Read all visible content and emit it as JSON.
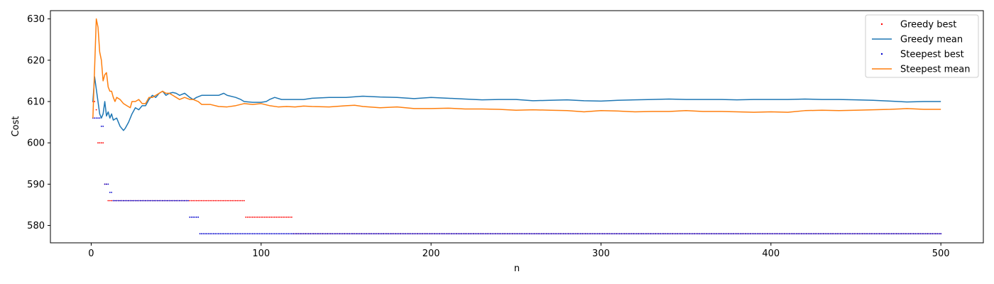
{
  "chart_data": {
    "type": "line",
    "title": "",
    "xlabel": "n",
    "ylabel": "Cost",
    "xlim": [
      -24,
      525
    ],
    "ylim": [
      575.8,
      632
    ],
    "xticks": [
      0,
      100,
      200,
      300,
      400,
      500
    ],
    "yticks": [
      580,
      590,
      600,
      610,
      620,
      630
    ],
    "grid": false,
    "legend_position": "top-right",
    "series": [
      {
        "name": "Greedy best",
        "kind": "points",
        "color": "#ff0000",
        "steps": [
          {
            "from": 1,
            "to": 2,
            "y": 610
          },
          {
            "from": 3,
            "to": 3,
            "y": 608
          },
          {
            "from": 4,
            "to": 7,
            "y": 600
          },
          {
            "from": 8,
            "to": 8,
            "y": 590
          },
          {
            "from": 9,
            "to": 9,
            "y": 590
          },
          {
            "from": 10,
            "to": 90,
            "y": 586
          },
          {
            "from": 91,
            "to": 118,
            "y": 582
          },
          {
            "from": 119,
            "to": 500,
            "y": 578
          }
        ]
      },
      {
        "name": "Greedy mean",
        "kind": "line",
        "color": "#1f77b4",
        "points": [
          [
            1,
            610
          ],
          [
            2,
            616
          ],
          [
            3,
            613
          ],
          [
            4,
            610
          ],
          [
            5,
            607
          ],
          [
            6,
            606
          ],
          [
            7,
            607
          ],
          [
            8,
            610
          ],
          [
            9,
            606.5
          ],
          [
            10,
            607.5
          ],
          [
            11,
            606
          ],
          [
            12,
            607
          ],
          [
            13,
            605.5
          ],
          [
            15,
            606
          ],
          [
            17,
            604
          ],
          [
            19,
            603
          ],
          [
            20,
            603.5
          ],
          [
            22,
            605
          ],
          [
            24,
            607
          ],
          [
            26,
            608.5
          ],
          [
            28,
            608
          ],
          [
            30,
            609
          ],
          [
            32,
            609
          ],
          [
            34,
            610.5
          ],
          [
            36,
            611.5
          ],
          [
            38,
            611
          ],
          [
            40,
            612
          ],
          [
            42,
            612.5
          ],
          [
            44,
            611.5
          ],
          [
            46,
            612
          ],
          [
            48,
            612.2
          ],
          [
            50,
            612
          ],
          [
            52,
            611.5
          ],
          [
            55,
            612
          ],
          [
            58,
            611
          ],
          [
            60,
            610.5
          ],
          [
            62,
            611
          ],
          [
            65,
            611.5
          ],
          [
            70,
            611.5
          ],
          [
            75,
            611.5
          ],
          [
            78,
            612
          ],
          [
            80,
            611.5
          ],
          [
            85,
            611
          ],
          [
            88,
            610.5
          ],
          [
            90,
            610
          ],
          [
            95,
            609.8
          ],
          [
            100,
            609.8
          ],
          [
            103,
            610
          ],
          [
            105,
            610.5
          ],
          [
            108,
            611
          ],
          [
            112,
            610.5
          ],
          [
            118,
            610.5
          ],
          [
            125,
            610.5
          ],
          [
            130,
            610.8
          ],
          [
            140,
            611
          ],
          [
            150,
            611
          ],
          [
            160,
            611.3
          ],
          [
            170,
            611.1
          ],
          [
            180,
            611
          ],
          [
            190,
            610.7
          ],
          [
            200,
            611
          ],
          [
            210,
            610.8
          ],
          [
            220,
            610.6
          ],
          [
            230,
            610.4
          ],
          [
            240,
            610.5
          ],
          [
            250,
            610.5
          ],
          [
            260,
            610.2
          ],
          [
            270,
            610.3
          ],
          [
            280,
            610.4
          ],
          [
            290,
            610.2
          ],
          [
            300,
            610.1
          ],
          [
            310,
            610.3
          ],
          [
            320,
            610.4
          ],
          [
            330,
            610.5
          ],
          [
            340,
            610.6
          ],
          [
            350,
            610.5
          ],
          [
            360,
            610.5
          ],
          [
            370,
            610.5
          ],
          [
            380,
            610.4
          ],
          [
            390,
            610.5
          ],
          [
            400,
            610.5
          ],
          [
            410,
            610.5
          ],
          [
            420,
            610.6
          ],
          [
            430,
            610.5
          ],
          [
            440,
            610.5
          ],
          [
            450,
            610.4
          ],
          [
            460,
            610.3
          ],
          [
            470,
            610.1
          ],
          [
            480,
            609.9
          ],
          [
            490,
            610
          ],
          [
            500,
            610
          ]
        ]
      },
      {
        "name": "Steepest best",
        "kind": "points",
        "color": "#0000cd",
        "steps": [
          {
            "from": 1,
            "to": 5,
            "y": 606
          },
          {
            "from": 6,
            "to": 7,
            "y": 604
          },
          {
            "from": 8,
            "to": 10,
            "y": 590
          },
          {
            "from": 11,
            "to": 12,
            "y": 588
          },
          {
            "from": 13,
            "to": 57,
            "y": 586
          },
          {
            "from": 58,
            "to": 63,
            "y": 582
          },
          {
            "from": 64,
            "to": 500,
            "y": 578
          }
        ]
      },
      {
        "name": "Steepest mean",
        "kind": "line",
        "color": "#ff7f0e",
        "points": [
          [
            1,
            606
          ],
          [
            2,
            618
          ],
          [
            3,
            630
          ],
          [
            4,
            628
          ],
          [
            5,
            622
          ],
          [
            6,
            620
          ],
          [
            7,
            615
          ],
          [
            8,
            616.5
          ],
          [
            9,
            617
          ],
          [
            10,
            613.5
          ],
          [
            11,
            612.5
          ],
          [
            12,
            612.5
          ],
          [
            13,
            611
          ],
          [
            14,
            610
          ],
          [
            15,
            611
          ],
          [
            17,
            610.5
          ],
          [
            19,
            609.5
          ],
          [
            21,
            609
          ],
          [
            23,
            608.5
          ],
          [
            24,
            610
          ],
          [
            26,
            610
          ],
          [
            28,
            610.5
          ],
          [
            30,
            609.5
          ],
          [
            32,
            609.5
          ],
          [
            34,
            611
          ],
          [
            36,
            611
          ],
          [
            38,
            611.5
          ],
          [
            40,
            612
          ],
          [
            42,
            612.5
          ],
          [
            44,
            612
          ],
          [
            46,
            612
          ],
          [
            48,
            611.5
          ],
          [
            50,
            611
          ],
          [
            52,
            610.5
          ],
          [
            55,
            611
          ],
          [
            58,
            610.5
          ],
          [
            60,
            610.5
          ],
          [
            63,
            610
          ],
          [
            65,
            609.3
          ],
          [
            70,
            609.3
          ],
          [
            75,
            608.8
          ],
          [
            80,
            608.7
          ],
          [
            85,
            609
          ],
          [
            90,
            609.5
          ],
          [
            95,
            609.3
          ],
          [
            100,
            609.5
          ],
          [
            105,
            609
          ],
          [
            110,
            608.7
          ],
          [
            115,
            608.8
          ],
          [
            120,
            608.7
          ],
          [
            125,
            608.9
          ],
          [
            130,
            608.8
          ],
          [
            140,
            608.7
          ],
          [
            150,
            609
          ],
          [
            155,
            609.1
          ],
          [
            160,
            608.8
          ],
          [
            170,
            608.5
          ],
          [
            180,
            608.7
          ],
          [
            190,
            608.3
          ],
          [
            200,
            608.3
          ],
          [
            210,
            608.4
          ],
          [
            220,
            608.2
          ],
          [
            230,
            608.2
          ],
          [
            240,
            608.1
          ],
          [
            250,
            607.9
          ],
          [
            260,
            608
          ],
          [
            270,
            607.9
          ],
          [
            280,
            607.8
          ],
          [
            290,
            607.5
          ],
          [
            300,
            607.8
          ],
          [
            310,
            607.7
          ],
          [
            320,
            607.5
          ],
          [
            330,
            607.6
          ],
          [
            340,
            607.6
          ],
          [
            350,
            607.8
          ],
          [
            360,
            607.6
          ],
          [
            370,
            607.6
          ],
          [
            380,
            607.5
          ],
          [
            390,
            607.4
          ],
          [
            400,
            607.5
          ],
          [
            410,
            607.4
          ],
          [
            420,
            607.8
          ],
          [
            430,
            607.9
          ],
          [
            440,
            607.8
          ],
          [
            450,
            607.9
          ],
          [
            460,
            608
          ],
          [
            470,
            608.1
          ],
          [
            480,
            608.3
          ],
          [
            490,
            608.1
          ],
          [
            500,
            608.1
          ]
        ]
      }
    ]
  }
}
